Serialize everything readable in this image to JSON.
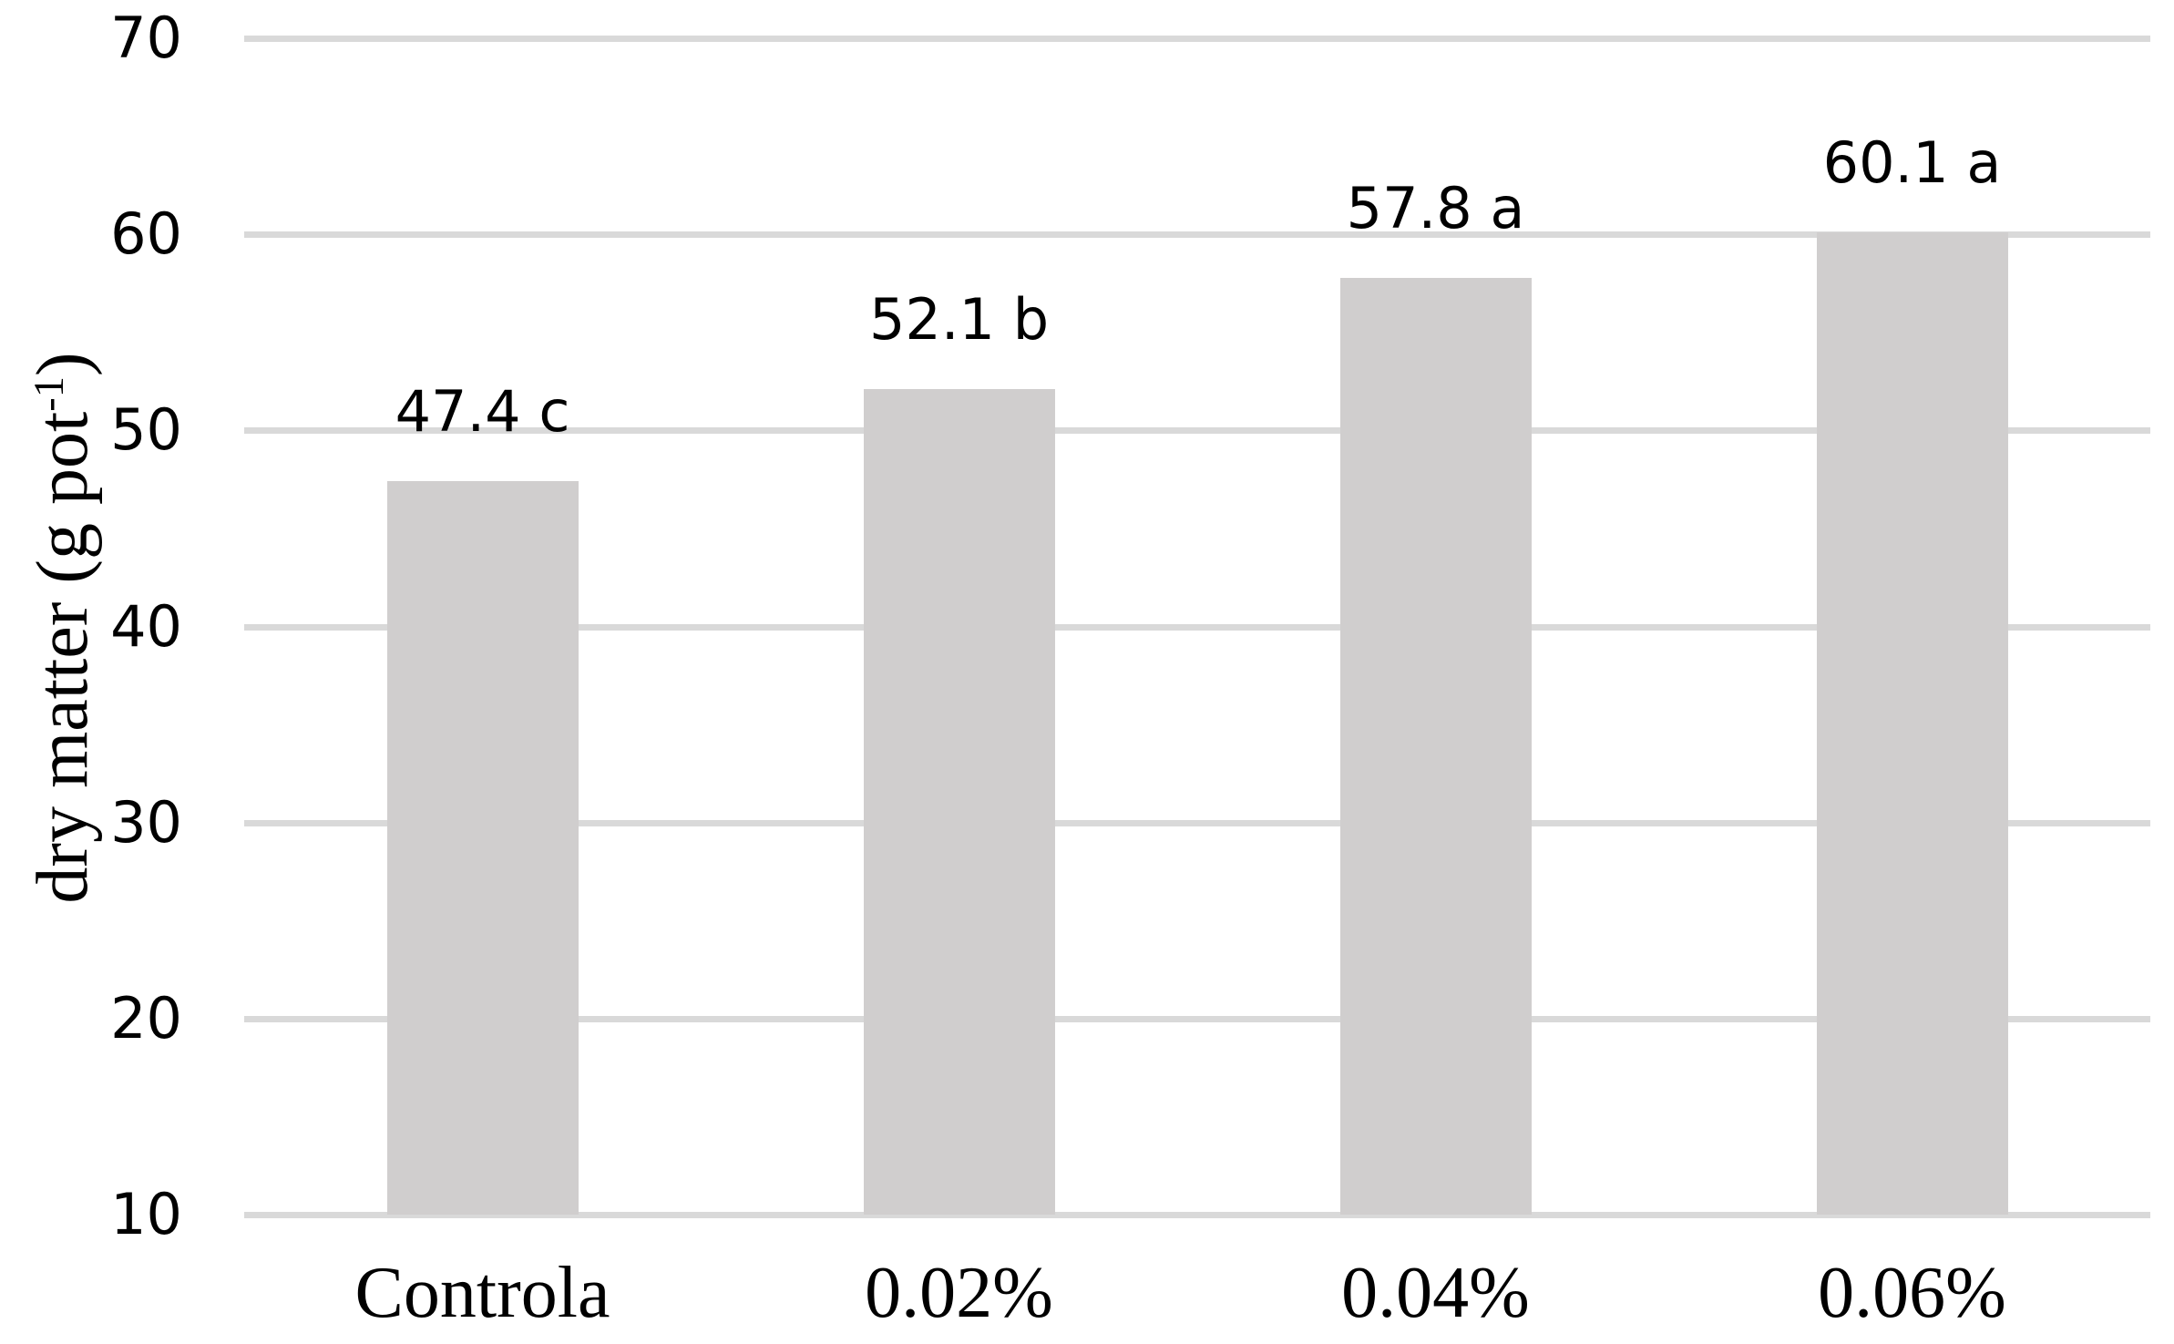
{
  "chart_data": {
    "type": "bar",
    "title": "",
    "categories": [
      "Controla",
      "0.02%",
      "0.04%",
      "0.06%"
    ],
    "values": [
      47.4,
      52.1,
      57.8,
      60.1
    ],
    "bar_labels": [
      "47.4 c",
      "52.1 b",
      "57.8 a",
      "60.1 a"
    ],
    "significance_letters": [
      "c",
      "b",
      "a",
      "a"
    ],
    "xlabel": "",
    "ylabel": "dry matter (g pot⁻¹)",
    "ylabel_parts": {
      "base": "dry matter (g pot",
      "superscript": "-1",
      "close": ")"
    },
    "ylim": [
      10,
      70
    ],
    "yticks": [
      10,
      20,
      30,
      40,
      50,
      60,
      70
    ],
    "grid": true,
    "legend_position": "none",
    "colors": {
      "bar_fill": "#d0cece",
      "gridline": "#d9d9d9",
      "text": "#000000",
      "background": "#ffffff"
    }
  }
}
